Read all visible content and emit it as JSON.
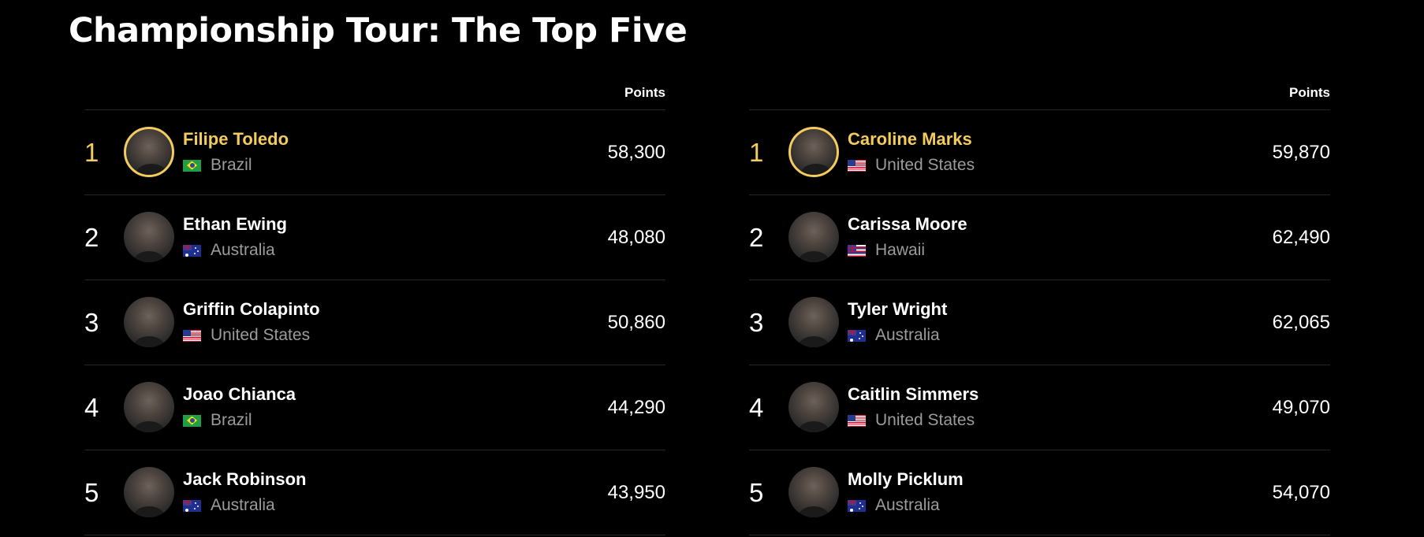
{
  "page": {
    "title": "Championship Tour: The Top Five"
  },
  "colors": {
    "background": "#000000",
    "leader_accent": "#f4cb5d",
    "text_primary": "#ffffff",
    "text_secondary": "#9b9b9b",
    "divider": "#262626"
  },
  "boards": [
    {
      "points_header": "Points",
      "rows": [
        {
          "rank": "1",
          "name": "Filipe Toledo",
          "country": "Brazil",
          "flag": "brazil-flag-icon",
          "points": "58,300"
        },
        {
          "rank": "2",
          "name": "Ethan Ewing",
          "country": "Australia",
          "flag": "australia-flag-icon",
          "points": "48,080"
        },
        {
          "rank": "3",
          "name": "Griffin Colapinto",
          "country": "United States",
          "flag": "us-flag-icon",
          "points": "50,860"
        },
        {
          "rank": "4",
          "name": "Joao Chianca",
          "country": "Brazil",
          "flag": "brazil-flag-icon",
          "points": "44,290"
        },
        {
          "rank": "5",
          "name": "Jack Robinson",
          "country": "Australia",
          "flag": "australia-flag-icon",
          "points": "43,950"
        }
      ]
    },
    {
      "points_header": "Points",
      "rows": [
        {
          "rank": "1",
          "name": "Caroline Marks",
          "country": "United States",
          "flag": "us-flag-icon",
          "points": "59,870"
        },
        {
          "rank": "2",
          "name": "Carissa Moore",
          "country": "Hawaii",
          "flag": "hawaii-flag-icon",
          "points": "62,490"
        },
        {
          "rank": "3",
          "name": "Tyler Wright",
          "country": "Australia",
          "flag": "australia-flag-icon",
          "points": "62,065"
        },
        {
          "rank": "4",
          "name": "Caitlin Simmers",
          "country": "United States",
          "flag": "us-flag-icon",
          "points": "49,070"
        },
        {
          "rank": "5",
          "name": "Molly Picklum",
          "country": "Australia",
          "flag": "australia-flag-icon",
          "points": "54,070"
        }
      ]
    }
  ]
}
